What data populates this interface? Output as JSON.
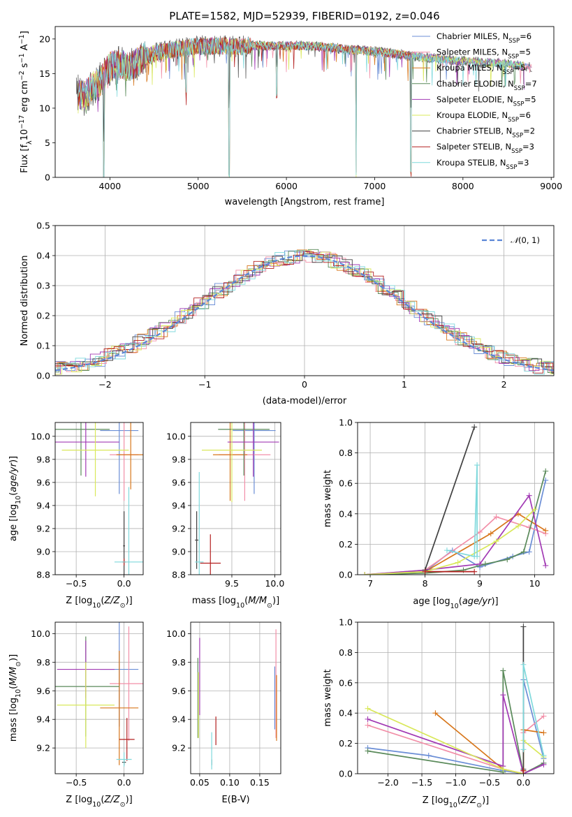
{
  "figure": {
    "title": "PLATE=1582, MJD=52939, FIBERID=0192, z=0.046"
  },
  "models": [
    {
      "label": "Chabrier MILES, N",
      "nssp": "=6",
      "color": "#6b8ed6"
    },
    {
      "label": "Salpeter MILES, N",
      "nssp": "=5",
      "color": "#f28fa8"
    },
    {
      "label": "Kroupa MILES, N",
      "nssp": "=5",
      "color": "#d7761b"
    },
    {
      "label": "Chabrier ELODIE, N",
      "nssp": "=7",
      "color": "#5a8a5a"
    },
    {
      "label": "Salpeter ELODIE, N",
      "nssp": "=5",
      "color": "#a23ab4"
    },
    {
      "label": "Kroupa ELODIE, N",
      "nssp": "=6",
      "color": "#d9e85a"
    },
    {
      "label": "Chabrier STELIB, N",
      "nssp": "=2",
      "color": "#404040"
    },
    {
      "label": "Salpeter STELIB, N",
      "nssp": "=3",
      "color": "#b42020"
    },
    {
      "label": "Kroupa STELIB, N",
      "nssp": "=3",
      "color": "#7fd9dc"
    }
  ],
  "chart_data": [
    {
      "type": "line",
      "id": "spectrum",
      "ylabel": "Flux [f",
      "ylabel_units": "10",
      "xlabel": "wavelength [Angstrom, rest frame]",
      "xlim": [
        3380,
        9030
      ],
      "ylim": [
        0,
        21.8
      ],
      "xticks": [
        "4000",
        "5000",
        "6000",
        "7000",
        "8000",
        "9000"
      ],
      "yticks": [
        "0",
        "5",
        "10",
        "15",
        "20"
      ],
      "legend_position": "upper right",
      "continuum": {
        "x": [
          3620,
          3700,
          3800,
          3900,
          4000,
          4100,
          4200,
          4300,
          4400,
          4600,
          4800,
          5000,
          5200,
          5400,
          5600,
          5800,
          6000,
          6200,
          6400,
          6600,
          6800,
          7000,
          7200,
          7400,
          7600,
          7800,
          8000,
          8200,
          8400,
          8600,
          8800
        ],
        "y": [
          12.5,
          11.5,
          13.0,
          14.0,
          16.0,
          16.3,
          16.0,
          16.5,
          17.5,
          18.2,
          18.6,
          19.0,
          19.0,
          18.9,
          19.0,
          19.0,
          19.0,
          19.0,
          18.9,
          18.6,
          18.4,
          18.2,
          17.9,
          17.6,
          17.3,
          17.0,
          16.8,
          16.6,
          16.5,
          16.2,
          16.0
        ]
      },
      "dips": [
        {
          "x": 3930,
          "depth": 21
        },
        {
          "x": 5350,
          "depth": 19
        },
        {
          "x": 6790,
          "depth": 18
        },
        {
          "x": 7410,
          "depth": 17
        },
        {
          "x": 5890,
          "depth": 7
        },
        {
          "x": 4860,
          "depth": 6
        }
      ]
    },
    {
      "type": "bar",
      "id": "residuals",
      "ylabel": "Normed distribution",
      "xlabel": "(data-model)/error",
      "xlim": [
        -2.5,
        2.5
      ],
      "ylim": [
        0,
        0.5
      ],
      "xticks": [
        "−2",
        "−1",
        "0",
        "1",
        "2"
      ],
      "yticks": [
        "0.0",
        "0.1",
        "0.2",
        "0.3",
        "0.4",
        "0.5"
      ],
      "legend_label": "(0, 1)",
      "legend_position": "upper right",
      "normal": {
        "mu": 0,
        "sigma": 1
      }
    },
    {
      "type": "scatter",
      "id": "age-vs-Z",
      "xlabel": "Z [log",
      "ylabel": "age  [log",
      "xlim": [
        -0.72,
        0.2
      ],
      "ylim": [
        8.8,
        10.12
      ],
      "xticks": [
        "−0.5",
        "0.0"
      ],
      "yticks": [
        "8.8",
        "9.0",
        "9.2",
        "9.4",
        "9.6",
        "9.8",
        "10.0"
      ],
      "points": [
        {
          "x": -0.05,
          "y": 10.05,
          "xerr": 0.2,
          "yerr": 0.55
        },
        {
          "x": 0.0,
          "y": 9.84,
          "xerr": 0.15,
          "yerr": 0.4
        },
        {
          "x": 0.07,
          "y": 9.84,
          "xerr": 0.15,
          "yerr": 0.3
        },
        {
          "x": -0.45,
          "y": 10.06,
          "xerr": 0.3,
          "yerr": 0.4
        },
        {
          "x": -0.4,
          "y": 9.95,
          "xerr": 0.35,
          "yerr": 0.3
        },
        {
          "x": -0.3,
          "y": 9.88,
          "xerr": 0.35,
          "yerr": 0.4
        },
        {
          "x": 0.0,
          "y": 9.05,
          "xerr": 0.01,
          "yerr": 0.3
        },
        {
          "x": 0.0,
          "y": 8.91,
          "xerr": 0.02,
          "yerr": 0.03
        },
        {
          "x": 0.05,
          "y": 8.91,
          "xerr": 0.15,
          "yerr": 0.65
        }
      ]
    },
    {
      "type": "scatter",
      "id": "age-vs-mass",
      "xlabel": "mass [log",
      "xlim": [
        9.02,
        10.07
      ],
      "ylim": [
        8.8,
        10.12
      ],
      "xticks": [
        "9.5",
        "10.0"
      ],
      "yticks": [
        "8.8",
        "9.0",
        "9.2",
        "9.4",
        "9.6",
        "9.8",
        "10.0"
      ],
      "points": [
        {
          "x": 9.76,
          "y": 10.05,
          "xerr": 0.25,
          "yerr": 0.55
        },
        {
          "x": 9.65,
          "y": 9.84,
          "xerr": 0.3,
          "yerr": 0.4
        },
        {
          "x": 9.48,
          "y": 9.84,
          "xerr": 0.2,
          "yerr": 0.4
        },
        {
          "x": 9.64,
          "y": 10.06,
          "xerr": 0.3,
          "yerr": 0.4
        },
        {
          "x": 9.75,
          "y": 9.95,
          "xerr": 0.3,
          "yerr": 0.3
        },
        {
          "x": 9.5,
          "y": 9.88,
          "xerr": 0.35,
          "yerr": 0.45
        },
        {
          "x": 9.09,
          "y": 9.1,
          "xerr": 0.02,
          "yerr": 0.25
        },
        {
          "x": 9.25,
          "y": 8.9,
          "xerr": 0.12,
          "yerr": 0.25
        },
        {
          "x": 9.12,
          "y": 8.91,
          "xerr": 0.05,
          "yerr": 0.78
        }
      ]
    },
    {
      "type": "line",
      "id": "weight-vs-age",
      "xlabel": "age  [log",
      "ylabel": "mass weight",
      "xlim": [
        6.77,
        10.35
      ],
      "ylim": [
        0,
        1.0
      ],
      "xticks": [
        "7",
        "8",
        "9",
        "10"
      ],
      "yticks": [
        "0.0",
        "0.2",
        "0.4",
        "0.6",
        "0.8",
        "1.0"
      ],
      "series": [
        {
          "x": [
            6.9,
            8.0,
            8.5,
            9.0,
            9.6,
            9.9,
            10.2
          ],
          "y": [
            0.0,
            0.02,
            0.16,
            0.05,
            0.12,
            0.15,
            0.62
          ]
        },
        {
          "x": [
            6.9,
            8.0,
            9.0,
            9.3,
            9.9,
            10.2
          ],
          "y": [
            0.0,
            0.03,
            0.28,
            0.38,
            0.31,
            0.27
          ]
        },
        {
          "x": [
            6.9,
            8.0,
            9.2,
            9.7,
            10.2
          ],
          "y": [
            0.0,
            0.02,
            0.27,
            0.4,
            0.29
          ]
        },
        {
          "x": [
            6.9,
            8.0,
            8.7,
            9.1,
            9.5,
            9.8,
            10.2
          ],
          "y": [
            0.0,
            0.01,
            0.03,
            0.07,
            0.1,
            0.15,
            0.68
          ]
        },
        {
          "x": [
            6.9,
            8.0,
            9.0,
            9.9,
            10.2
          ],
          "y": [
            0.0,
            0.03,
            0.07,
            0.52,
            0.06
          ]
        },
        {
          "x": [
            6.9,
            8.0,
            8.6,
            9.3,
            9.7,
            10.0
          ],
          "y": [
            0.0,
            0.02,
            0.08,
            0.22,
            0.32,
            0.43
          ]
        },
        {
          "x": [
            8.0,
            8.9
          ],
          "y": [
            0.03,
            0.97
          ]
        },
        {
          "x": [
            8.0,
            8.9
          ],
          "y": [
            0.02,
            0.02
          ]
        },
        {
          "x": [
            8.4,
            8.9,
            8.95,
            8.95
          ],
          "y": [
            0.16,
            0.12,
            0.72,
            0.12
          ]
        }
      ]
    },
    {
      "type": "scatter",
      "id": "mass-vs-Z",
      "xlabel": "Z [log",
      "ylabel": "mass [log",
      "xlim": [
        -0.72,
        0.2
      ],
      "ylim": [
        9.02,
        10.08
      ],
      "xticks": [
        "−0.5",
        "0.0"
      ],
      "yticks": [
        "9.2",
        "9.4",
        "9.6",
        "9.8",
        "10.0"
      ],
      "points": [
        {
          "x": -0.05,
          "y": 9.75,
          "xerr": 0.2,
          "yerr": 0.4
        },
        {
          "x": 0.05,
          "y": 9.65,
          "xerr": 0.2,
          "yerr": 0.4
        },
        {
          "x": -0.05,
          "y": 9.48,
          "xerr": 0.2,
          "yerr": 0.4
        },
        {
          "x": -0.4,
          "y": 9.63,
          "xerr": 0.35,
          "yerr": 0.35
        },
        {
          "x": -0.4,
          "y": 9.75,
          "xerr": 0.3,
          "yerr": 0.2
        },
        {
          "x": -0.4,
          "y": 9.5,
          "xerr": 0.3,
          "yerr": 0.3
        },
        {
          "x": 0.0,
          "y": 9.1,
          "xerr": 0.02,
          "yerr": 0.02
        },
        {
          "x": 0.03,
          "y": 9.26,
          "xerr": 0.08,
          "yerr": 0.15
        },
        {
          "x": 0.0,
          "y": 9.12,
          "xerr": 0.08,
          "yerr": 0.05
        }
      ]
    },
    {
      "type": "scatter",
      "id": "mass-vs-ebv",
      "xlabel": "E(B-V)",
      "xlim": [
        0.035,
        0.185
      ],
      "ylim": [
        9.02,
        10.08
      ],
      "xticks": [
        "0.05",
        "0.10",
        "0.15"
      ],
      "yticks": [
        "9.2",
        "9.4",
        "9.6",
        "9.8",
        "10.0"
      ],
      "points": [
        {
          "x": 0.175,
          "y": 9.55,
          "xerr": 0.0,
          "yerr": 0.22
        },
        {
          "x": 0.177,
          "y": 9.65,
          "xerr": 0.0,
          "yerr": 0.38
        },
        {
          "x": 0.178,
          "y": 9.48,
          "xerr": 0.0,
          "yerr": 0.23
        },
        {
          "x": 0.047,
          "y": 9.55,
          "xerr": 0.0,
          "yerr": 0.28
        },
        {
          "x": 0.05,
          "y": 9.7,
          "xerr": 0.0,
          "yerr": 0.27
        },
        {
          "x": 0.048,
          "y": 9.5,
          "xerr": 0.0,
          "yerr": 0.23
        },
        {
          "x": 0.07,
          "y": 9.1,
          "xerr": 0.0,
          "yerr": 0.02
        },
        {
          "x": 0.077,
          "y": 9.32,
          "xerr": 0.0,
          "yerr": 0.1
        },
        {
          "x": 0.07,
          "y": 9.18,
          "xerr": 0.0,
          "yerr": 0.13
        }
      ]
    },
    {
      "type": "line",
      "id": "weight-vs-Z",
      "xlabel": "Z [log",
      "ylabel": "mass weight",
      "xlim": [
        -2.45,
        0.45
      ],
      "ylim": [
        0,
        1.0
      ],
      "xticks": [
        "−2.0",
        "−1.5",
        "−1.0",
        "−0.5",
        "0.0"
      ],
      "yticks": [
        "0.0",
        "0.2",
        "0.4",
        "0.6",
        "0.8",
        "1.0"
      ],
      "series": [
        {
          "x": [
            -2.3,
            -1.4,
            -0.3,
            0.0,
            0.0,
            0.3
          ],
          "y": [
            0.17,
            0.12,
            0.02,
            0.0,
            0.62,
            0.1
          ]
        },
        {
          "x": [
            -2.3,
            -0.3,
            0.0,
            0.0,
            0.3
          ],
          "y": [
            0.32,
            0.03,
            0.0,
            0.27,
            0.38
          ]
        },
        {
          "x": [
            -1.3,
            -0.3,
            0.0,
            0.0,
            0.3
          ],
          "y": [
            0.4,
            0.03,
            0.0,
            0.29,
            0.27
          ]
        },
        {
          "x": [
            -2.3,
            -0.3,
            -0.3,
            0.0,
            0.3
          ],
          "y": [
            0.15,
            0.01,
            0.68,
            0.0,
            0.07
          ]
        },
        {
          "x": [
            -2.3,
            -0.3,
            -0.3,
            0.0,
            0.3
          ],
          "y": [
            0.36,
            0.05,
            0.52,
            0.0,
            0.06
          ]
        },
        {
          "x": [
            -2.3,
            -0.3,
            0.0,
            0.0,
            0.3
          ],
          "y": [
            0.43,
            0.03,
            0.0,
            0.22,
            0.11
          ]
        },
        {
          "x": [
            0.0,
            0.0
          ],
          "y": [
            0.03,
            0.97
          ]
        },
        {
          "x": [
            0.0,
            0.0
          ],
          "y": [
            0.02,
            0.02
          ]
        },
        {
          "x": [
            0.0,
            0.0,
            0.3
          ],
          "y": [
            0.16,
            0.72,
            0.12
          ]
        }
      ]
    }
  ]
}
